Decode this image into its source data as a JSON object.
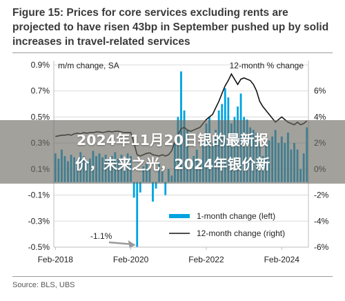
{
  "figure": {
    "title": "Figure 15: Prices for core services excluding rents are projected to have risen 43bp in September pushed up by solid increases in travel-related services",
    "source": "Source: BLS, UBS"
  },
  "overlay": {
    "line1": "2024年11月20日银的最新报",
    "line2": "价，未来之光，2024年银价新"
  },
  "chart_data": {
    "type": "bar",
    "colors": {
      "bars": "#00a3e0",
      "line": "#111111",
      "grid": "#d9d9d9",
      "annotation": "#9a9a9a"
    },
    "panel_labels": {
      "left": "m/m change, SA",
      "right": "12-month % change"
    },
    "left_axis": {
      "range": [
        -0.5,
        0.9
      ],
      "ticks": [
        -0.5,
        -0.3,
        -0.1,
        0.1,
        0.3,
        0.5,
        0.7,
        0.9
      ],
      "tick_labels": [
        "-0.5%",
        "-0.3%",
        "-0.1%",
        "0.1%",
        "0.3%",
        "0.5%",
        "0.7%",
        "0.9%"
      ]
    },
    "right_axis": {
      "range": [
        -6,
        8
      ],
      "ticks": [
        -6,
        -4,
        -2,
        0,
        2,
        4,
        6
      ],
      "tick_labels": [
        "-6%",
        "-4%",
        "-2%",
        "0%",
        "2%",
        "4%",
        "6%"
      ]
    },
    "x_axis": {
      "ticks": [
        "Feb-2018",
        "Feb-2020",
        "Feb-2022",
        "Feb-2024"
      ],
      "tick_indices": [
        0,
        24,
        48,
        72
      ]
    },
    "grid": true,
    "legend": {
      "position": "lower-right",
      "entries": [
        "1-month change (left)",
        "12-month change (right)"
      ]
    },
    "annotation": {
      "text": "-1.1%",
      "points_to": "Apr-2020",
      "index": 26
    },
    "series": [
      {
        "name": "1-month change (left)",
        "type": "bar",
        "axis": "left",
        "values": [
          0.22,
          0.18,
          0.25,
          0.2,
          0.16,
          0.21,
          0.19,
          0.17,
          0.23,
          0.2,
          0.15,
          0.18,
          0.24,
          0.2,
          0.22,
          0.19,
          0.21,
          0.16,
          0.2,
          0.23,
          0.18,
          0.21,
          0.17,
          0.22,
          0.2,
          -0.12,
          -0.5,
          -0.08,
          0.12,
          0.15,
          0.1,
          -0.15,
          -0.05,
          0.14,
          0.08,
          -0.1,
          0.1,
          0.05,
          0.3,
          0.5,
          0.85,
          0.55,
          0.4,
          0.1,
          0.2,
          0.25,
          0.18,
          0.3,
          0.45,
          0.5,
          0.3,
          0.4,
          0.55,
          0.6,
          0.72,
          0.65,
          0.45,
          0.5,
          0.58,
          0.68,
          0.5,
          0.48,
          0.42,
          0.4,
          0.38,
          0.3,
          0.2,
          0.28,
          0.32,
          0.35,
          0.4,
          0.3,
          0.35,
          0.3,
          0.38,
          0.25,
          0.3,
          0.25,
          0.1,
          0.22,
          0.42
        ]
      },
      {
        "name": "12-month change (right)",
        "type": "line",
        "axis": "right",
        "values": [
          2.5,
          2.55,
          2.6,
          2.6,
          2.65,
          2.6,
          2.7,
          2.75,
          2.7,
          2.8,
          2.75,
          2.8,
          2.8,
          2.85,
          2.85,
          2.8,
          2.85,
          2.9,
          2.85,
          2.9,
          2.9,
          2.85,
          2.8,
          2.8,
          2.8,
          2.0,
          1.1,
          1.0,
          1.1,
          1.2,
          1.25,
          1.1,
          1.05,
          1.0,
          1.1,
          1.0,
          1.1,
          1.4,
          2.1,
          2.6,
          3.1,
          3.2,
          3.0,
          2.9,
          3.0,
          3.1,
          3.2,
          3.5,
          3.8,
          4.0,
          4.2,
          4.7,
          5.2,
          5.8,
          6.4,
          6.8,
          7.3,
          6.9,
          6.5,
          6.9,
          7.0,
          6.9,
          6.8,
          6.5,
          6.0,
          5.2,
          4.8,
          4.5,
          4.2,
          3.9,
          3.6,
          3.8,
          4.0,
          3.8,
          3.6,
          3.5,
          3.4,
          3.6,
          3.4,
          3.5,
          3.7
        ]
      }
    ]
  }
}
